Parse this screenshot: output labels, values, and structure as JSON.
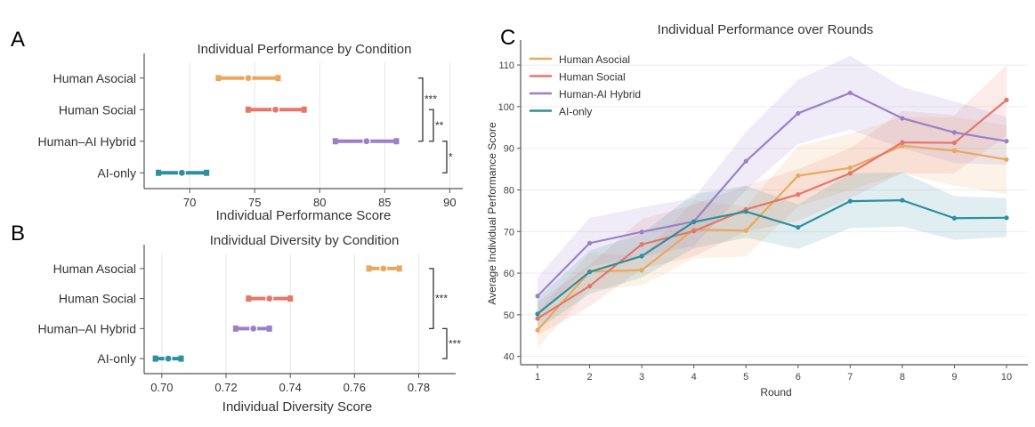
{
  "colors": {
    "Human Asocial": "#E8A95E",
    "Human Social": "#E5766A",
    "Human-AI Hybrid": "#9B80C8",
    "AI-only": "#2E8F9E"
  },
  "chart_data": [
    {
      "panel": "A",
      "type": "errorbar",
      "title": "Individual Performance by Condition",
      "xlabel": "Individual Performance Score",
      "xlim": [
        66.5,
        91
      ],
      "xticks": [
        70,
        75,
        80,
        85,
        90
      ],
      "grid": "vertical",
      "categories": [
        "Human Asocial",
        "Human Social",
        "Human–AI Hybrid",
        "AI-only"
      ],
      "means": [
        74.5,
        76.6,
        83.6,
        69.4
      ],
      "lower": [
        72.2,
        74.5,
        81.2,
        67.6
      ],
      "upper": [
        76.8,
        78.8,
        85.9,
        71.3
      ],
      "significance": [
        {
          "from": 0,
          "to": 2,
          "label": "***"
        },
        {
          "from": 1,
          "to": 2,
          "label": "**"
        },
        {
          "from": 2,
          "to": 3,
          "label": "*"
        }
      ]
    },
    {
      "panel": "B",
      "type": "errorbar",
      "title": "Individual Diversity by Condition",
      "xlabel": "Individual Diversity Score",
      "xlim": [
        0.6945,
        0.7915
      ],
      "xticks": [
        "0.70",
        "0.72",
        "0.74",
        "0.76",
        "0.78"
      ],
      "grid": "vertical",
      "categories": [
        "Human Asocial",
        "Human Social",
        "Human–AI Hybrid",
        "AI-only"
      ],
      "means": [
        0.769,
        0.7335,
        0.7285,
        0.702
      ],
      "lower": [
        0.7645,
        0.727,
        0.723,
        0.698
      ],
      "upper": [
        0.774,
        0.74,
        0.7335,
        0.706
      ],
      "significance": [
        {
          "from": 0,
          "to": 2,
          "label": "***"
        },
        {
          "from": 2,
          "to": 3,
          "label": "***"
        }
      ]
    },
    {
      "panel": "C",
      "type": "line",
      "title": "Individual Performance over Rounds",
      "xlabel": "Round",
      "ylabel": "Average Individual Performance Score",
      "x": [
        1,
        2,
        3,
        4,
        5,
        6,
        7,
        8,
        9,
        10
      ],
      "ylim": [
        38,
        116
      ],
      "yticks": [
        40,
        50,
        60,
        70,
        80,
        90,
        100,
        110
      ],
      "grid": "horizontal",
      "legend": "top-left",
      "series": [
        {
          "name": "Human Asocial",
          "values": [
            46.3,
            60.4,
            60.7,
            70.5,
            70.2,
            83.4,
            85.3,
            90.6,
            89.4,
            87.3
          ],
          "lower": [
            42,
            56,
            57,
            63.5,
            64,
            76,
            80,
            84,
            81,
            79
          ],
          "upper": [
            50.5,
            65,
            64,
            77.5,
            76,
            90.5,
            93.5,
            97.5,
            97.5,
            95.5
          ]
        },
        {
          "name": "Human Social",
          "values": [
            49.1,
            56.9,
            66.9,
            70.1,
            75.3,
            78.9,
            84.0,
            91.4,
            91.3,
            101.6
          ],
          "lower": [
            45,
            52,
            61,
            64,
            70,
            72.5,
            78,
            84,
            84,
            93
          ],
          "upper": [
            53,
            62,
            73,
            76.5,
            81,
            85,
            90,
            99,
            98,
            110
          ]
        },
        {
          "name": "Human-AI Hybrid",
          "values": [
            54.5,
            67.2,
            69.9,
            72.4,
            86.9,
            98.4,
            103.3,
            97.2,
            93.8,
            91.7
          ],
          "lower": [
            50,
            61.5,
            64,
            66.5,
            80,
            91,
            94.5,
            90,
            86.5,
            86
          ],
          "upper": [
            59,
            73.3,
            75.8,
            78,
            94,
            106.5,
            112.2,
            104.7,
            101.3,
            97.5
          ]
        },
        {
          "name": "AI-only",
          "values": [
            50.2,
            60.3,
            64.1,
            72.3,
            74.8,
            71.0,
            77.3,
            77.5,
            73.2,
            73.3
          ],
          "lower": [
            46.5,
            55,
            59,
            66,
            68.5,
            65.8,
            70.8,
            71.2,
            68,
            68.7
          ],
          "upper": [
            54,
            65.5,
            69.5,
            79,
            81,
            76.5,
            84,
            84.2,
            78.5,
            78
          ]
        }
      ]
    }
  ]
}
